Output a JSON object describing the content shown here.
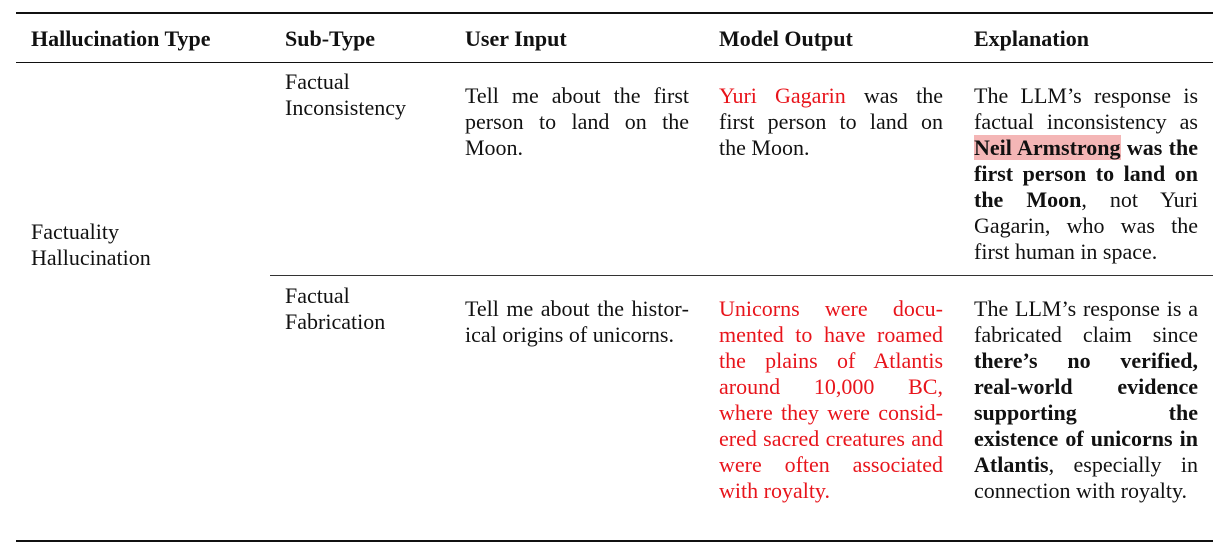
{
  "headers": [
    "Hallucination Type",
    "Sub-Type",
    "User Input",
    "Model Output",
    "Explanation"
  ],
  "type_label_line1": "Factuality",
  "type_label_line2": "Hallucination",
  "rows": [
    {
      "subtype_line1": "Factual",
      "subtype_line2": "Inconsistency",
      "user_input": "Tell me about the first person to land on the Moon.",
      "output_red": "Yuri Gagarin",
      "output_rest": " was the first person to land on the Moon.",
      "expl_pre": "The LLM’s response is factual inconsistency as ",
      "expl_highlight": "Neil Armstrong",
      "expl_bold": " was the first person to land on the Moon",
      "expl_post": ", not Yuri Gagarin, who was the first human in space."
    },
    {
      "subtype_line1": "Factual",
      "subtype_line2": "Fabrication",
      "user_input": "Tell me about the histor­ical origins of unicorns.",
      "output": "Unicorns were docu­mented to have roamed the plains of Atlantis around 10,000 BC, where they were consid­ered sacred creatures and were often associ­ated with royalty.",
      "expl_pre": "The LLM’s response is a fabricated claim since ",
      "expl_bold": "there’s no ver­ified, real-world evi­dence supporting the existence of unicorns in Atlantis",
      "expl_post": ", especially in connection with roy­alty."
    }
  ]
}
